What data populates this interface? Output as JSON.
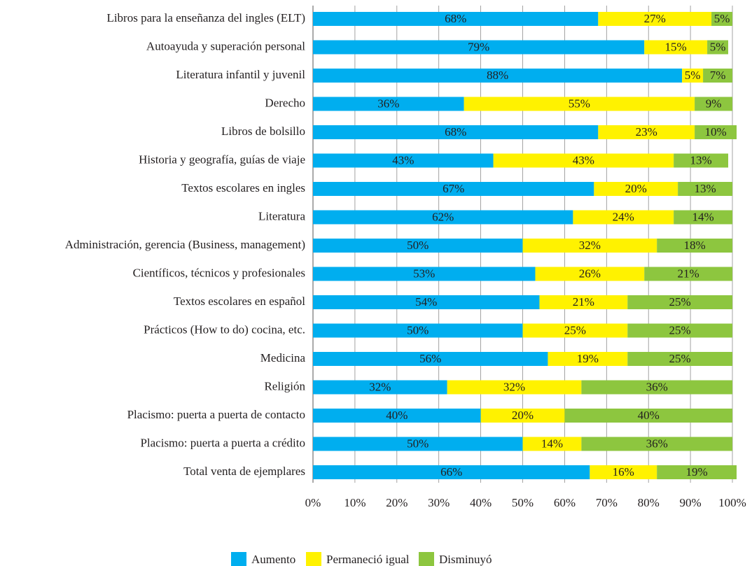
{
  "chart_data": {
    "type": "stacked-bar-horizontal",
    "categories": [
      "Libros para la enseñanza del ingles (ELT)",
      "Autoayuda y superación personal",
      "Literatura infantil y juvenil",
      "Derecho",
      "Libros de bolsillo",
      "Historia y geografía, guías de viaje",
      "Textos escolares en ingles",
      "Literatura",
      "Administración, gerencia (Business, management)",
      "Científicos, técnicos y profesionales",
      "Textos escolares en español",
      "Prácticos (How to do) cocina, etc.",
      "Medicina",
      "Religión",
      "Placismo: puerta a puerta de contacto",
      "Placismo: puerta a puerta a crédito",
      "Total venta de ejemplares"
    ],
    "series": [
      {
        "name": "Aumento",
        "color": "#00aeef",
        "values": [
          68,
          79,
          88,
          36,
          68,
          43,
          67,
          62,
          50,
          53,
          54,
          50,
          56,
          32,
          40,
          50,
          66
        ],
        "value_labels": [
          "68%",
          "79%",
          "88%",
          "36%",
          "68%",
          "43%",
          "67%",
          "62%",
          "50%",
          "53%",
          "54%",
          "50%",
          "56%",
          "32%",
          "40%",
          "50%",
          "66%"
        ]
      },
      {
        "name": "Permaneció igual",
        "color": "#fff200",
        "values": [
          27,
          15,
          5,
          55,
          23,
          43,
          20,
          24,
          32,
          26,
          21,
          25,
          19,
          32,
          20,
          14,
          16
        ],
        "value_labels": [
          "27%",
          "15%",
          "5%",
          "55%",
          "23%",
          "43%",
          "20%",
          "24%",
          "32%",
          "26%",
          "21%",
          "25%",
          "19%",
          "32%",
          "20%",
          "14%",
          "16%"
        ]
      },
      {
        "name": "Disminuyó",
        "color": "#8dc63f",
        "values": [
          5,
          5,
          7,
          9,
          10,
          13,
          13,
          14,
          18,
          21,
          25,
          25,
          25,
          36,
          40,
          36,
          19
        ],
        "value_labels": [
          "5%",
          "5%",
          "7%",
          "9%",
          "10%",
          "13%",
          "13%",
          "14%",
          "18%",
          "21%",
          "25%",
          "25%",
          "25%",
          "36%",
          "40%",
          "36%",
          "19%"
        ]
      }
    ],
    "xlim": [
      0,
      100
    ],
    "xticks": [
      {
        "value": 0,
        "label": "0%"
      },
      {
        "value": 10,
        "label": "10%"
      },
      {
        "value": 20,
        "label": "20%"
      },
      {
        "value": 30,
        "label": "30%"
      },
      {
        "value": 40,
        "label": "40%"
      },
      {
        "value": 50,
        "label": "50%"
      },
      {
        "value": 60,
        "label": "60%"
      },
      {
        "value": 70,
        "label": "70%"
      },
      {
        "value": 80,
        "label": "80%"
      },
      {
        "value": 90,
        "label": "90%"
      },
      {
        "value": 100,
        "label": "100%"
      }
    ],
    "grid": true,
    "legend": "bottom"
  }
}
